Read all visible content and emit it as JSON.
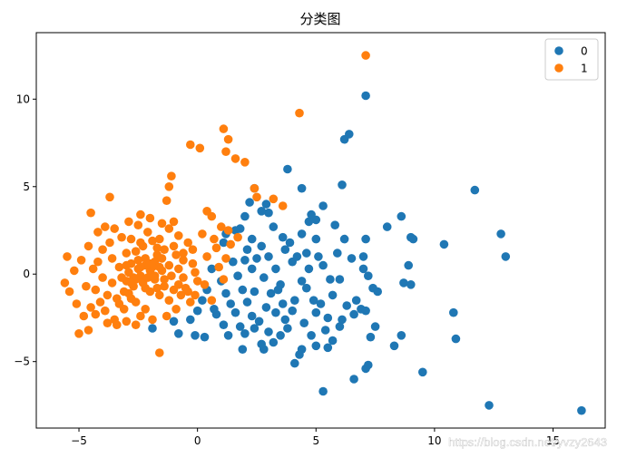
{
  "chart_data": {
    "type": "scatter",
    "title": "分类图",
    "xlabel": "",
    "ylabel": "",
    "xlim": [
      -6.8,
      17.2
    ],
    "ylim": [
      -8.8,
      13.8
    ],
    "x_ticks": [
      -5,
      0,
      5,
      10,
      15
    ],
    "y_ticks": [
      -5,
      0,
      5,
      10
    ],
    "grid": false,
    "legend_position": "top-right",
    "series": [
      {
        "name": "0",
        "color": "#1f77b4",
        "points": [
          [
            7.1,
            10.2
          ],
          [
            6.4,
            8.0
          ],
          [
            6.2,
            7.7
          ],
          [
            3.8,
            6.0
          ],
          [
            11.7,
            4.8
          ],
          [
            6.1,
            5.1
          ],
          [
            4.4,
            4.9
          ],
          [
            2.4,
            4.9
          ],
          [
            8.6,
            3.3
          ],
          [
            12.8,
            2.3
          ],
          [
            9.0,
            2.1
          ],
          [
            9.1,
            2.0
          ],
          [
            13.0,
            1.0
          ],
          [
            10.4,
            1.7
          ],
          [
            8.0,
            2.7
          ],
          [
            7.1,
            2.0
          ],
          [
            6.5,
            0.9
          ],
          [
            7.0,
            0.3
          ],
          [
            7.4,
            -0.8
          ],
          [
            8.9,
            0.5
          ],
          [
            8.7,
            -0.5
          ],
          [
            9.0,
            -0.6
          ],
          [
            10.8,
            -2.2
          ],
          [
            10.9,
            -3.7
          ],
          [
            8.6,
            -3.5
          ],
          [
            8.3,
            -4.1
          ],
          [
            9.5,
            -5.6
          ],
          [
            7.2,
            -5.2
          ],
          [
            7.1,
            -5.4
          ],
          [
            6.6,
            -6.0
          ],
          [
            5.3,
            -6.7
          ],
          [
            12.3,
            -7.5
          ],
          [
            16.2,
            -7.8
          ],
          [
            7.3,
            -3.6
          ],
          [
            7.5,
            -3.0
          ],
          [
            6.9,
            -2.0
          ],
          [
            7.2,
            -0.1
          ],
          [
            7.0,
            1.0
          ],
          [
            6.2,
            2.0
          ],
          [
            5.9,
            1.2
          ],
          [
            5.3,
            3.9
          ],
          [
            5.0,
            3.1
          ],
          [
            4.8,
            3.4
          ],
          [
            4.7,
            3.0
          ],
          [
            5.0,
            2.0
          ],
          [
            5.1,
            1.0
          ],
          [
            4.7,
            0.3
          ],
          [
            4.4,
            -0.4
          ],
          [
            4.0,
            0.7
          ],
          [
            3.7,
            1.4
          ],
          [
            3.6,
            2.1
          ],
          [
            3.2,
            2.7
          ],
          [
            3.0,
            3.5
          ],
          [
            2.7,
            3.6
          ],
          [
            2.9,
            4.0
          ],
          [
            2.2,
            4.1
          ],
          [
            2.0,
            3.3
          ],
          [
            1.8,
            2.6
          ],
          [
            2.3,
            2.0
          ],
          [
            2.7,
            1.6
          ],
          [
            2.5,
            0.9
          ],
          [
            2.3,
            0.3
          ],
          [
            2.8,
            -0.2
          ],
          [
            3.3,
            0.3
          ],
          [
            3.5,
            -0.6
          ],
          [
            3.1,
            -1.1
          ],
          [
            3.6,
            -1.7
          ],
          [
            4.0,
            -2.1
          ],
          [
            4.5,
            -2.8
          ],
          [
            5.0,
            -2.2
          ],
          [
            5.5,
            -2.5
          ],
          [
            5.7,
            -1.2
          ],
          [
            6.0,
            -0.3
          ],
          [
            6.3,
            -1.8
          ],
          [
            6.0,
            -3.0
          ],
          [
            5.7,
            -3.8
          ],
          [
            5.5,
            -4.2
          ],
          [
            5.0,
            -4.1
          ],
          [
            4.4,
            -4.3
          ],
          [
            4.3,
            -4.6
          ],
          [
            4.1,
            -5.1
          ],
          [
            3.5,
            -3.5
          ],
          [
            3.2,
            -3.9
          ],
          [
            3.0,
            -3.3
          ],
          [
            2.8,
            -4.3
          ],
          [
            2.7,
            -4.0
          ],
          [
            2.3,
            -2.4
          ],
          [
            2.0,
            -3.4
          ],
          [
            1.8,
            -3.0
          ],
          [
            1.6,
            -2.2
          ],
          [
            1.4,
            -1.7
          ],
          [
            1.2,
            -1.1
          ],
          [
            1.0,
            -0.4
          ],
          [
            0.6,
            0.3
          ],
          [
            0.4,
            -0.9
          ],
          [
            0.2,
            -1.5
          ],
          [
            0.0,
            -2.1
          ],
          [
            -0.3,
            -2.6
          ],
          [
            -0.8,
            -3.4
          ],
          [
            -1.0,
            -2.7
          ],
          [
            -1.9,
            -3.1
          ],
          [
            -0.1,
            -3.5
          ],
          [
            0.3,
            -3.6
          ],
          [
            1.9,
            -4.3
          ],
          [
            1.5,
            0.7
          ],
          [
            1.1,
            1.8
          ],
          [
            1.2,
            2.3
          ],
          [
            1.6,
            2.5
          ],
          [
            2.1,
            1.4
          ],
          [
            3.9,
            1.8
          ],
          [
            4.4,
            2.3
          ],
          [
            4.6,
            1.2
          ],
          [
            5.3,
            0.5
          ],
          [
            5.6,
            -0.3
          ],
          [
            4.9,
            -1.5
          ],
          [
            4.1,
            -1.5
          ],
          [
            3.3,
            -2.2
          ],
          [
            2.6,
            -2.7
          ],
          [
            2.1,
            -1.6
          ],
          [
            1.9,
            -0.9
          ],
          [
            1.7,
            -0.1
          ],
          [
            0.8,
            -2.3
          ],
          [
            1.1,
            -2.9
          ],
          [
            2.4,
            -3.1
          ],
          [
            3.8,
            -3.1
          ],
          [
            4.8,
            -3.5
          ],
          [
            6.6,
            -2.3
          ],
          [
            7.6,
            -1.0
          ],
          [
            2.0,
            0.8
          ],
          [
            3.0,
            1.0
          ],
          [
            4.2,
            1.0
          ],
          [
            5.8,
            2.8
          ],
          [
            6.7,
            -1.5
          ],
          [
            7.1,
            -2.1
          ],
          [
            3.4,
            -0.9
          ],
          [
            2.4,
            -1.0
          ],
          [
            4.6,
            -0.8
          ],
          [
            5.2,
            -1.7
          ],
          [
            3.7,
            -2.6
          ],
          [
            1.3,
            -3.5
          ],
          [
            0.7,
            -2.0
          ],
          [
            2.9,
            -1.9
          ],
          [
            5.4,
            -3.2
          ],
          [
            6.1,
            -2.6
          ]
        ]
      },
      {
        "name": "1",
        "color": "#ff7f0e",
        "points": [
          [
            7.1,
            12.5
          ],
          [
            4.3,
            9.2
          ],
          [
            1.1,
            8.3
          ],
          [
            1.3,
            7.7
          ],
          [
            1.2,
            7.0
          ],
          [
            -0.3,
            7.4
          ],
          [
            0.1,
            7.2
          ],
          [
            1.6,
            6.6
          ],
          [
            2.0,
            6.4
          ],
          [
            -1.1,
            5.6
          ],
          [
            -1.2,
            5.0
          ],
          [
            -1.3,
            4.2
          ],
          [
            2.4,
            4.9
          ],
          [
            2.5,
            4.4
          ],
          [
            3.2,
            4.3
          ],
          [
            3.6,
            3.9
          ],
          [
            -3.7,
            4.4
          ],
          [
            -4.5,
            3.5
          ],
          [
            -2.4,
            3.4
          ],
          [
            0.4,
            3.6
          ],
          [
            0.6,
            3.3
          ],
          [
            1.3,
            2.5
          ],
          [
            1.7,
            2.1
          ],
          [
            -4.2,
            2.4
          ],
          [
            -3.9,
            2.7
          ],
          [
            -5.5,
            1.0
          ],
          [
            -5.6,
            -0.5
          ],
          [
            -5.4,
            -1.0
          ],
          [
            -5.0,
            -3.4
          ],
          [
            -4.6,
            -3.2
          ],
          [
            -4.3,
            -2.3
          ],
          [
            -1.6,
            -4.5
          ],
          [
            -4.7,
            -0.7
          ],
          [
            -4.4,
            0.3
          ],
          [
            -4.0,
            1.4
          ],
          [
            -3.8,
            -1.2
          ],
          [
            -3.5,
            -2.6
          ],
          [
            -3.1,
            -2.0
          ],
          [
            -2.9,
            -1.1
          ],
          [
            -2.7,
            -0.2
          ],
          [
            -2.5,
            0.8
          ],
          [
            -2.3,
            1.6
          ],
          [
            -2.1,
            2.4
          ],
          [
            -1.9,
            1.9
          ],
          [
            -1.7,
            1.1
          ],
          [
            -1.5,
            0.2
          ],
          [
            -1.4,
            -0.7
          ],
          [
            -1.2,
            -1.5
          ],
          [
            -1.0,
            -0.9
          ],
          [
            -0.8,
            0.3
          ],
          [
            -0.6,
            1.2
          ],
          [
            -0.4,
            1.8
          ],
          [
            -0.2,
            0.6
          ],
          [
            0.0,
            -0.4
          ],
          [
            -0.1,
            -1.2
          ],
          [
            0.4,
            1.0
          ],
          [
            0.7,
            2.0
          ],
          [
            0.9,
            0.4
          ],
          [
            1.1,
            -0.3
          ],
          [
            -3.3,
            0.4
          ],
          [
            -3.0,
            1.2
          ],
          [
            -2.8,
            2.0
          ],
          [
            -2.6,
            -1.6
          ],
          [
            -2.4,
            -2.4
          ],
          [
            -2.2,
            -0.8
          ],
          [
            -2.0,
            0.2
          ],
          [
            -1.8,
            -0.3
          ],
          [
            -1.6,
            -1.2
          ],
          [
            -1.4,
            1.4
          ],
          [
            -1.2,
            2.6
          ],
          [
            -1.0,
            3.0
          ],
          [
            -0.8,
            2.2
          ],
          [
            -0.6,
            -0.2
          ],
          [
            -0.4,
            -1.0
          ],
          [
            -0.2,
            1.4
          ],
          [
            0.2,
            2.3
          ],
          [
            -3.6,
            -0.5
          ],
          [
            -3.4,
            -1.4
          ],
          [
            -3.2,
            2.1
          ],
          [
            -3.0,
            -0.4
          ],
          [
            -2.8,
            0.6
          ],
          [
            -2.6,
            1.3
          ],
          [
            -2.4,
            -0.1
          ],
          [
            -2.2,
            0.9
          ],
          [
            -2.0,
            -1.0
          ],
          [
            -1.8,
            0.7
          ],
          [
            -1.6,
            2.0
          ],
          [
            -1.4,
            -0.3
          ],
          [
            -1.2,
            0.5
          ],
          [
            -1.0,
            1.6
          ],
          [
            -0.8,
            -0.6
          ],
          [
            -0.6,
            0.8
          ],
          [
            -2.3,
            -0.5
          ],
          [
            -2.1,
            -0.2
          ],
          [
            -1.9,
            0.4
          ],
          [
            -2.5,
            0.3
          ],
          [
            -2.7,
            -0.7
          ],
          [
            -1.7,
            -0.8
          ],
          [
            -1.5,
            0.9
          ],
          [
            -2.9,
            0.1
          ],
          [
            -3.1,
            -1.0
          ],
          [
            -3.3,
            -1.7
          ],
          [
            -3.9,
            -2.1
          ],
          [
            -4.1,
            -1.6
          ],
          [
            -4.3,
            -0.9
          ],
          [
            -4.5,
            -1.9
          ],
          [
            -4.8,
            -2.4
          ],
          [
            -5.1,
            -1.7
          ],
          [
            -5.2,
            0.2
          ],
          [
            -4.9,
            0.8
          ],
          [
            -4.6,
            1.6
          ],
          [
            -4.2,
            0.7
          ],
          [
            -3.7,
            1.8
          ],
          [
            -3.5,
            2.6
          ],
          [
            -2.9,
            3.0
          ],
          [
            -2.5,
            2.8
          ],
          [
            -2.0,
            3.2
          ],
          [
            -1.5,
            2.9
          ],
          [
            -0.9,
            1.1
          ],
          [
            -0.5,
            -0.8
          ],
          [
            -0.3,
            -1.6
          ],
          [
            -0.9,
            -2.0
          ],
          [
            -1.3,
            -2.4
          ],
          [
            -1.9,
            -2.6
          ],
          [
            -2.2,
            -2.0
          ],
          [
            -2.6,
            -2.9
          ],
          [
            -3.0,
            -2.7
          ],
          [
            -3.4,
            -2.9
          ],
          [
            -3.8,
            -2.8
          ],
          [
            -4.0,
            -0.2
          ],
          [
            -3.6,
            0.9
          ],
          [
            -3.2,
            -0.2
          ],
          [
            -2.8,
            -1.4
          ],
          [
            -2.4,
            1.8
          ],
          [
            -1.7,
            1.5
          ],
          [
            -1.1,
            -0.1
          ],
          [
            -0.7,
            -1.2
          ],
          [
            -0.1,
            0.1
          ],
          [
            0.3,
            -0.6
          ],
          [
            0.6,
            -1.5
          ],
          [
            0.8,
            1.5
          ],
          [
            1.2,
            0.9
          ],
          [
            1.4,
            1.7
          ],
          [
            1.0,
            2.7
          ],
          [
            -2.6,
            -0.3
          ],
          [
            -2.2,
            0.5
          ],
          [
            -1.8,
            -0.1
          ],
          [
            -2.0,
            0.6
          ],
          [
            -2.4,
            0.4
          ],
          [
            -1.6,
            0.4
          ],
          [
            -2.8,
            -0.5
          ],
          [
            -3.0,
            0.5
          ]
        ]
      }
    ],
    "watermark": "https://blog.csdn.net/yvzy2643"
  }
}
